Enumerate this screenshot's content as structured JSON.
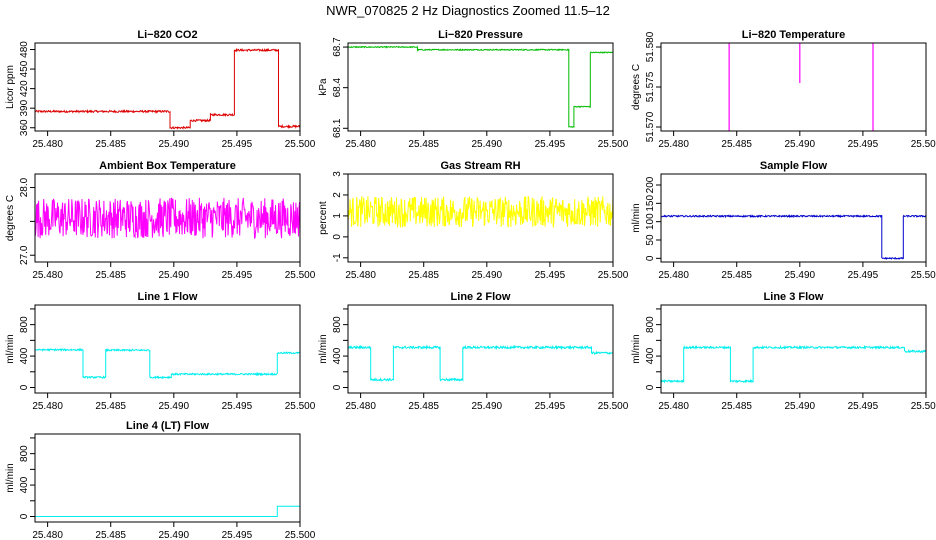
{
  "figure_title": "NWR_070825  2 Hz Diagnostics Zoomed 11.5–12",
  "chart_data": [
    {
      "type": "line",
      "title": "Li−820 CO2",
      "ylabel": "Licor ppm",
      "xlim": [
        25.479,
        25.5
      ],
      "ylim": [
        355,
        490
      ],
      "yticks": [
        360,
        390,
        420,
        450,
        480
      ],
      "color": "#dd0000",
      "noise": 1.5,
      "steps": [
        [
          25.479,
          25.4897,
          385
        ],
        [
          25.4897,
          25.4913,
          360
        ],
        [
          25.4913,
          25.4929,
          371
        ],
        [
          25.4929,
          25.4948,
          380
        ],
        [
          25.4948,
          25.4983,
          479
        ],
        [
          25.4983,
          25.5,
          362
        ]
      ]
    },
    {
      "type": "line",
      "title": "Li−820 Pressure",
      "ylabel": "kPa",
      "xlim": [
        25.479,
        25.5
      ],
      "ylim": [
        68.08,
        68.73
      ],
      "yticks": [
        68.1,
        68.4,
        68.7
      ],
      "ytick_labels": [
        "68.1",
        "68.4",
        "68.7"
      ],
      "color": "#00bb00",
      "noise": 0.004,
      "steps": [
        [
          25.479,
          25.4845,
          68.7
        ],
        [
          25.4845,
          25.4965,
          68.68
        ],
        [
          25.4965,
          25.4969,
          68.11
        ],
        [
          25.4969,
          25.4982,
          68.26
        ],
        [
          25.4982,
          25.4985,
          68.66
        ],
        [
          25.4985,
          25.5,
          68.66
        ]
      ]
    },
    {
      "type": "line",
      "title": "Li−820 Temperature",
      "ylabel": "degrees C",
      "xlim": [
        25.479,
        25.5
      ],
      "ylim": [
        51.5695,
        51.5805
      ],
      "yticks": [
        51.57,
        51.575,
        51.58
      ],
      "ytick_labels": [
        "51.570",
        "51.575",
        "51.580"
      ],
      "color": "#ff00ff",
      "noise": 0,
      "steps": [
        [
          25.479,
          25.5,
          51.5805
        ]
      ],
      "spikes": [
        [
          25.4844,
          51.5695
        ],
        [
          25.49,
          51.5755
        ],
        [
          25.4958,
          51.5695
        ]
      ]
    },
    {
      "type": "line",
      "title": "Ambient Box Temperature",
      "ylabel": "degrees C",
      "xlim": [
        25.479,
        25.5
      ],
      "ylim": [
        26.9,
        28.2
      ],
      "yticks": [
        27.0,
        27.5,
        28.0
      ],
      "ytick_labels": [
        "27.0",
        "",
        "28.0"
      ],
      "color": "#ff00ff",
      "noise": 0.3,
      "steps": [
        [
          25.479,
          25.5,
          27.55
        ]
      ]
    },
    {
      "type": "line",
      "title": "Gas Stream RH",
      "ylabel": "percent",
      "xlim": [
        25.479,
        25.5
      ],
      "ylim": [
        -1.2,
        3.0
      ],
      "yticks": [
        -1,
        0,
        1,
        2,
        3
      ],
      "color": "#ffff00",
      "noise": 0.75,
      "steps": [
        [
          25.479,
          25.5,
          1.2
        ]
      ]
    },
    {
      "type": "line",
      "title": "Sample Flow",
      "ylabel": "ml/min",
      "xlim": [
        25.479,
        25.5
      ],
      "ylim": [
        -10,
        230
      ],
      "yticks": [
        0,
        50,
        100,
        150,
        200
      ],
      "color": "#0000cc",
      "noise": 2,
      "steps": [
        [
          25.479,
          25.4965,
          115
        ],
        [
          25.4965,
          25.4982,
          0
        ],
        [
          25.4982,
          25.5,
          115
        ]
      ]
    },
    {
      "type": "line",
      "title": "Line 1 Flow",
      "ylabel": "ml/min",
      "xlim": [
        25.479,
        25.5
      ],
      "ylim": [
        -70,
        1050
      ],
      "yticks": [
        0,
        200,
        400,
        600,
        800,
        1000
      ],
      "ytick_labels": [
        "0",
        "",
        "400",
        "",
        "800",
        ""
      ],
      "color": "#00eeee",
      "noise": 10,
      "steps": [
        [
          25.479,
          25.4828,
          480
        ],
        [
          25.4828,
          25.4846,
          130
        ],
        [
          25.4846,
          25.4881,
          475
        ],
        [
          25.4881,
          25.4898,
          130
        ],
        [
          25.4898,
          25.4982,
          170
        ],
        [
          25.4982,
          25.5,
          440
        ]
      ]
    },
    {
      "type": "line",
      "title": "Line 2 Flow",
      "ylabel": "ml/min",
      "xlim": [
        25.479,
        25.5
      ],
      "ylim": [
        -70,
        1050
      ],
      "yticks": [
        0,
        200,
        400,
        600,
        800,
        1000
      ],
      "ytick_labels": [
        "0",
        "",
        "400",
        "",
        "800",
        ""
      ],
      "color": "#00eeee",
      "noise": 14,
      "steps": [
        [
          25.479,
          25.4808,
          510
        ],
        [
          25.4808,
          25.4826,
          100
        ],
        [
          25.4826,
          25.4863,
          510
        ],
        [
          25.4863,
          25.4881,
          100
        ],
        [
          25.4881,
          25.4983,
          510
        ],
        [
          25.4983,
          25.5,
          440
        ]
      ]
    },
    {
      "type": "line",
      "title": "Line 3 Flow",
      "ylabel": "ml/min",
      "xlim": [
        25.479,
        25.5
      ],
      "ylim": [
        -70,
        1050
      ],
      "yticks": [
        0,
        200,
        400,
        600,
        800,
        1000
      ],
      "ytick_labels": [
        "0",
        "",
        "400",
        "",
        "800",
        ""
      ],
      "color": "#00eeee",
      "noise": 12,
      "steps": [
        [
          25.479,
          25.4808,
          80
        ],
        [
          25.4808,
          25.4845,
          510
        ],
        [
          25.4845,
          25.4863,
          80
        ],
        [
          25.4863,
          25.4983,
          510
        ],
        [
          25.4983,
          25.5,
          460
        ]
      ]
    },
    {
      "type": "line",
      "title": "Line 4 (LT) Flow",
      "ylabel": "ml/min",
      "xlim": [
        25.479,
        25.5
      ],
      "ylim": [
        -70,
        1050
      ],
      "yticks": [
        0,
        200,
        400,
        600,
        800,
        1000
      ],
      "ytick_labels": [
        "0",
        "",
        "400",
        "",
        "800",
        ""
      ],
      "color": "#00eeee",
      "noise": 0,
      "steps": [
        [
          25.479,
          25.4982,
          0
        ],
        [
          25.4982,
          25.5,
          130
        ]
      ]
    }
  ],
  "x_ticks": [
    25.48,
    25.485,
    25.49,
    25.495,
    25.5
  ],
  "x_tick_labels": [
    "25.480",
    "25.485",
    "25.490",
    "25.495",
    "25.500"
  ]
}
